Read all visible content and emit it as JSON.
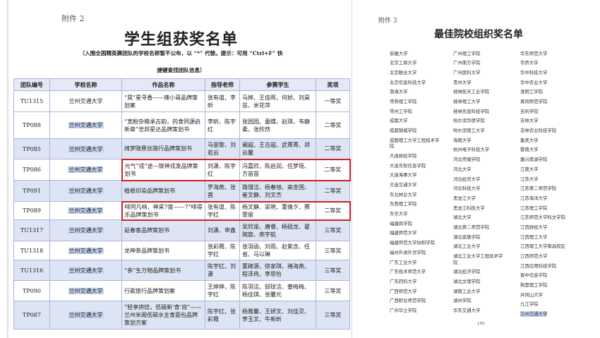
{
  "left_page": {
    "attachment": "附件 2",
    "title": "学生组获奖名单",
    "subtitle_line1": "（入围全国精英赛团队的学校名称暂不公布，以 “*” 代替。提示：可用 “Ctrl+F” 快",
    "subtitle_line2": "捷键查找团队信息）",
    "table": {
      "headers": [
        "团队编号",
        "学校名称",
        "作品名称",
        "指导老师",
        "参赛学生",
        "奖项"
      ],
      "rows": [
        {
          "id": "TU1315",
          "school": "兰州交通大学",
          "work": "“晃”星寻香——辣小哥品牌策划案",
          "teachers": "张有道、李昕",
          "students": "马婷、王佳晖、何娇、刘昊芸、米花萍",
          "award": "一等奖"
        },
        {
          "id": "TP088",
          "school": "兰州交通大学",
          "work": "“宽粉杂粮承古韵，药食同源启新章”世邦星达品牌策划书",
          "teachers": "李昕、陈宇红",
          "students": "张园园、童蝶、赵琪、韦静柔、张欣然",
          "award": "二等奖"
        },
        {
          "id": "TP085",
          "school": "兰州交通大学",
          "work": "绮梦陇原丝路行品牌策划书",
          "teachers": "马丽黎、刘若云",
          "students": "阚超、王吉超、武菁菁、郑云馨",
          "award": "二等奖"
        },
        {
          "id": "TP086",
          "school": "兰州交通大学",
          "work": "元气“戎”途—陇神戎发品牌策划书",
          "teachers": "刘潇、陈宇红",
          "students": "冯嘉欣、陈启润、任梦瑶、方苗苗",
          "award": "二等奖"
        },
        {
          "id": "TP091",
          "school": "兰州交通大学",
          "work": "植根印染品牌策划书",
          "teachers": "罗海燕、张茜",
          "students": "路馒洁、杨春旭、高金国、崔文静、刘文杰",
          "award": "二等奖"
        },
        {
          "id": "TP089",
          "school": "兰州交通大学",
          "work": "啡同凡响，神采7度——7°啡得乐品牌策划书",
          "teachers": "张有道、陈宇红",
          "students": "杨文静、梁艳、董倩夕、赛雯丽",
          "award": "二等奖"
        },
        {
          "id": "TU1317",
          "school": "兰州交通大学",
          "work": "延春客品牌策划书",
          "teachers": "刘潇、申鑫",
          "students": "吴欣渝、唐睿、杨砚龙、翟琬旋、燕宇航",
          "award": "三等奖"
        },
        {
          "id": "TU1318",
          "school": "兰州交通大学",
          "work": "龙神茶品牌策划书",
          "teachers": "张彩霞、陈宇红",
          "students": "张羽函、刘雨、赵紫含、任省、马以琳",
          "award": "三等奖"
        },
        {
          "id": "TU1316",
          "school": "兰州交通大学",
          "work": "“参”生万物品牌策划书",
          "teachers": "陈宇红、刘潇",
          "students": "董稼源、徐家琪、褚海燕、程泽冉、李思怡",
          "award": "三等奖"
        },
        {
          "id": "TP090",
          "school": "兰州交通大学",
          "work": "行歌旅行品牌策划案",
          "teachers": "王婷婷、陈宇红",
          "students": "陈羽洁、邸玟洁、姜梅梅、杨佳琪、张馨元",
          "award": "三等奖"
        },
        {
          "id": "TP087",
          "school": "兰州交通大学",
          "work": "“轻享烘焙，低碳新‘食’尚”——兰州米阁低碳水主食面包品牌策划方案",
          "teachers": "陈宇红、张彩霞",
          "students": "杨雅馨、王妍文、刘佳灵、李玉文、牛新昕",
          "award": "三等奖"
        }
      ]
    }
  },
  "right_page": {
    "attachment": "附件 3",
    "title": "最佳院校组织奖名单",
    "columns": [
      [
        "安徽大学",
        "北京工商大学",
        "北京联合大学",
        "北京信息科技大学",
        "渤海大学",
        "常熟理工学院",
        "常州工学院",
        "成都大学",
        "成都锦城学院",
        "成都理工大学工程技术学院",
        "大连财经学院",
        "大连东软信息学院",
        "大连海事大学",
        "大连交通大学",
        "东北林业大学",
        "东莞理工学院",
        "东华大学",
        "福建商学院",
        "福建师范大学",
        "福建师范大学协和学院",
        "福州外语外贸学院",
        "广东工业大学",
        "广东技术师范大学",
        "广东药科大学",
        "广西师范大学",
        "广西职业师范学院",
        "广州华立学院"
      ],
      [
        "广州理工学院",
        "广州南方学院",
        "广州医科大学",
        "贵州大学",
        "桂林航天工业学院",
        "桂林理工大学",
        "桂林信息科技学院",
        "哈尔滨华德学院",
        "哈尔滨理工大学",
        "海南大学",
        "杭州电子科技大学",
        "河北传媒学院",
        "河北大学",
        "河北经贸大学",
        "河北科技大学",
        "黑龙江大学",
        "黑龙江科技大学",
        "湖北大学",
        "湖北第二师范学院",
        "湖北恩施学院",
        "湖北工业大学",
        "湖北工业大学工程技术学院",
        "湖北经济学院",
        "湖北文理学院",
        "湖南工业大学",
        "湖州学院",
        "华东交通大学"
      ],
      [
        "华东师范大学",
        "华侨大学",
        "华中科技大学",
        "华中农业大学",
        "淮阴工学院",
        "黄冈师范学院",
        "吉利学院",
        "吉林大学",
        "吉林农业科技学院",
        "集美大学",
        "暨南大学",
        "嘉兴南湖学院",
        "江南大学",
        "江苏大学",
        "江苏第二师范学院",
        "江苏海洋大学",
        "江苏理工学院",
        "江苏师范大学科文学院",
        "江西财经大学",
        "江西理工大学",
        "江西理工大学南昌校区",
        "江西师范大学",
        "江西应用科技学院",
        "晋中信息学院",
        "荆楚理工学院",
        "井冈山大学",
        "九江学院",
        "兰州交通大学"
      ]
    ],
    "highlighted": "兰州交通大学",
    "page_number": "193"
  },
  "colors": {
    "highlight": "#c5d6f1",
    "row_alt": "#dde4f3",
    "box": "#d0202a"
  }
}
